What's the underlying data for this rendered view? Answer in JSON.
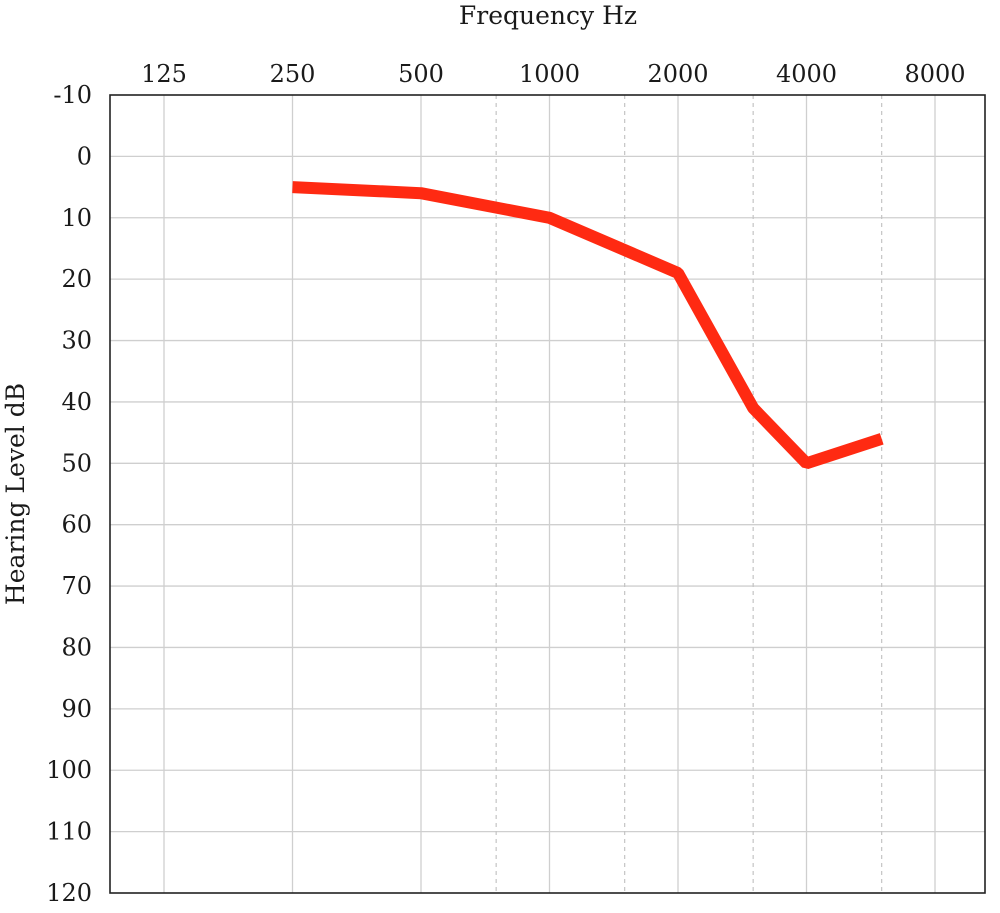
{
  "chart_data": {
    "type": "line",
    "xlabel": "Frequency Hz",
    "ylabel": "Hearing Level dB",
    "x_ticks": [
      "125",
      "250",
      "500",
      "1000",
      "2000",
      "4000",
      "8000"
    ],
    "x_intermediate_ticks": [
      750,
      1500,
      3000,
      6000
    ],
    "y_ticks": [
      -10,
      0,
      10,
      20,
      30,
      40,
      50,
      60,
      70,
      80,
      90,
      100,
      110,
      120
    ],
    "ylim": [
      -10,
      120
    ],
    "y_inverted": true,
    "x_scale": "log2",
    "grid": true,
    "series": [
      {
        "color": "#ff2a12",
        "x": [
          250,
          500,
          1000,
          2000,
          3000,
          4000,
          6000
        ],
        "y": [
          5,
          6,
          10,
          19,
          41,
          50,
          46
        ]
      }
    ]
  }
}
